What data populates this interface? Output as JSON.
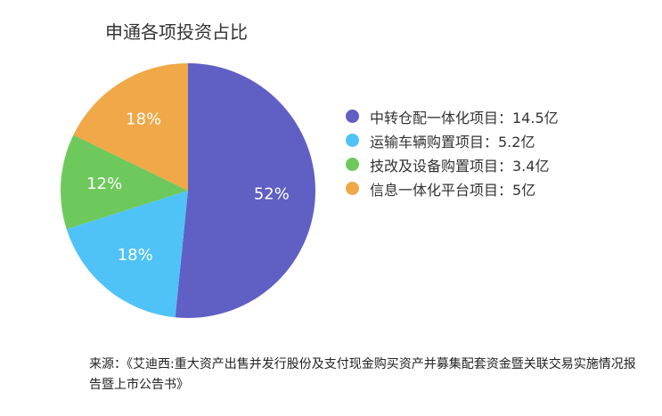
{
  "chart_data": {
    "type": "pie",
    "title": "申通各项投资占比",
    "slices": [
      {
        "label": "中转仓配一体化项目：14.5亿",
        "value": 14.5,
        "percent_label": "52%",
        "color": "#5f5fc4"
      },
      {
        "label": "运输车辆购置项目：5.2亿",
        "value": 5.2,
        "percent_label": "18%",
        "color": "#4fc3f7"
      },
      {
        "label": "技改及设备购置项目：3.4亿",
        "value": 3.4,
        "percent_label": "12%",
        "color": "#6dc95b"
      },
      {
        "label": "信息一体化平台项目：5亿",
        "value": 5,
        "percent_label": "18%",
        "color": "#f0a848"
      }
    ],
    "legend_position": "right",
    "source": "来源：《艾迪西:重大资产出售并发行股份及支付现金购买资产并募集配套资金暨关联交易实施情况报告暨上市公告书》"
  }
}
